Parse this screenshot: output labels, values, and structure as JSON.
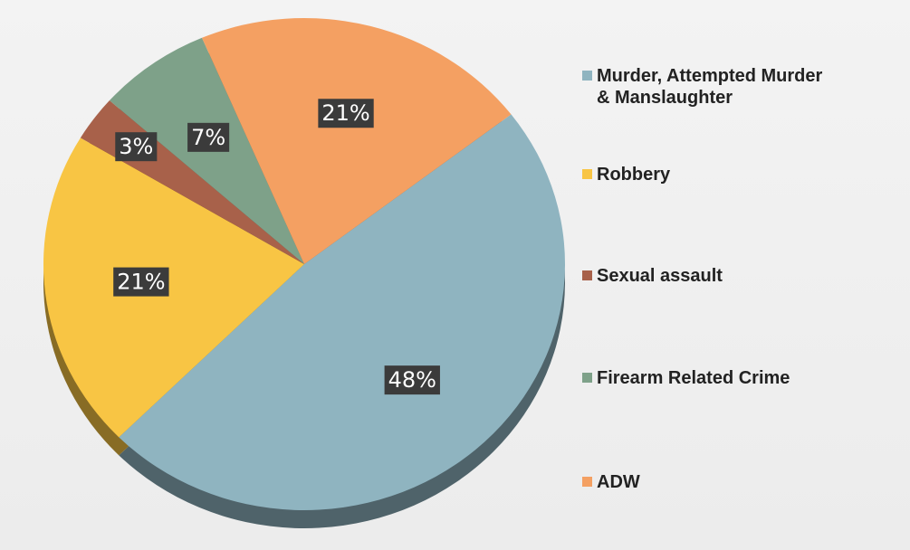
{
  "chart_data": {
    "type": "pie",
    "categories": [
      "Murder, Attempted Murder & Manslaughter",
      "Robbery",
      "Sexual assault",
      "Firearm Related Crime",
      "ADW"
    ],
    "values": [
      48,
      21,
      3,
      7,
      21
    ],
    "value_labels": [
      "48%",
      "21%",
      "3%",
      "7%",
      "21%"
    ],
    "colors": [
      "#8fb4c0",
      "#f8c544",
      "#a8614a",
      "#7ea189",
      "#f4a062"
    ],
    "legend": "right"
  }
}
